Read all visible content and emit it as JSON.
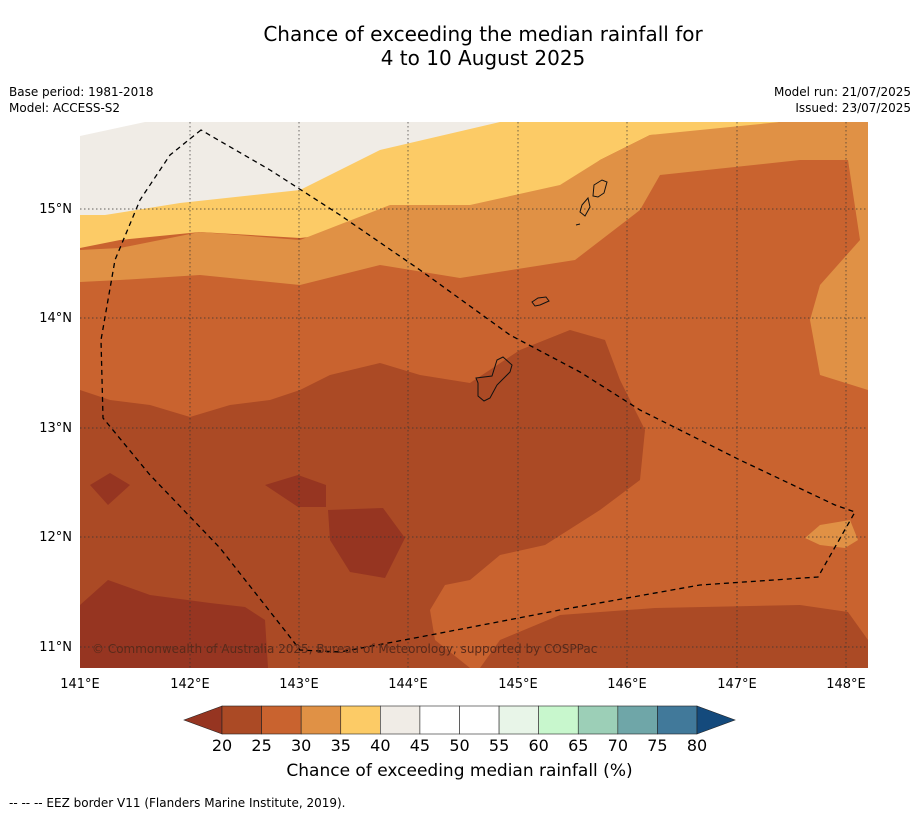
{
  "title_line1": "Chance of exceeding the median rainfall for",
  "title_line2": "4 to 10 August 2025",
  "base_period": "Base period: 1981-2018",
  "model": "Model: ACCESS-S2",
  "model_run": "Model run: 21/07/2025",
  "issued": "Issued: 23/07/2025",
  "copyright": "© Commonwealth of Australia 2025, Bureau of Meteorology, supported by COSPPac",
  "x_ticks": [
    "141°E",
    "142°E",
    "143°E",
    "144°E",
    "145°E",
    "146°E",
    "147°E",
    "148°E"
  ],
  "y_ticks": [
    "15°N",
    "14°N",
    "13°N",
    "12°N",
    "11°N"
  ],
  "colorbar": {
    "label": "Chance of exceeding median rainfall (%)",
    "ticks": [
      "20",
      "25",
      "30",
      "35",
      "40",
      "45",
      "50",
      "55",
      "60",
      "65",
      "70",
      "75",
      "80"
    ],
    "under_color": "#963521",
    "over_color": "#144a7c",
    "colors": [
      "#ab4a25",
      "#c9632f",
      "#e09145",
      "#fccb66",
      "#f0ece6",
      "#ffffff",
      "#ffffff",
      "#e8f5e8",
      "#c8f7cd",
      "#9ccfb7",
      "#6fa6a8",
      "#41799a"
    ]
  },
  "legend_note": "--  --  -- EEZ border V11 (Flanders Marine Institute, 2019)."
}
